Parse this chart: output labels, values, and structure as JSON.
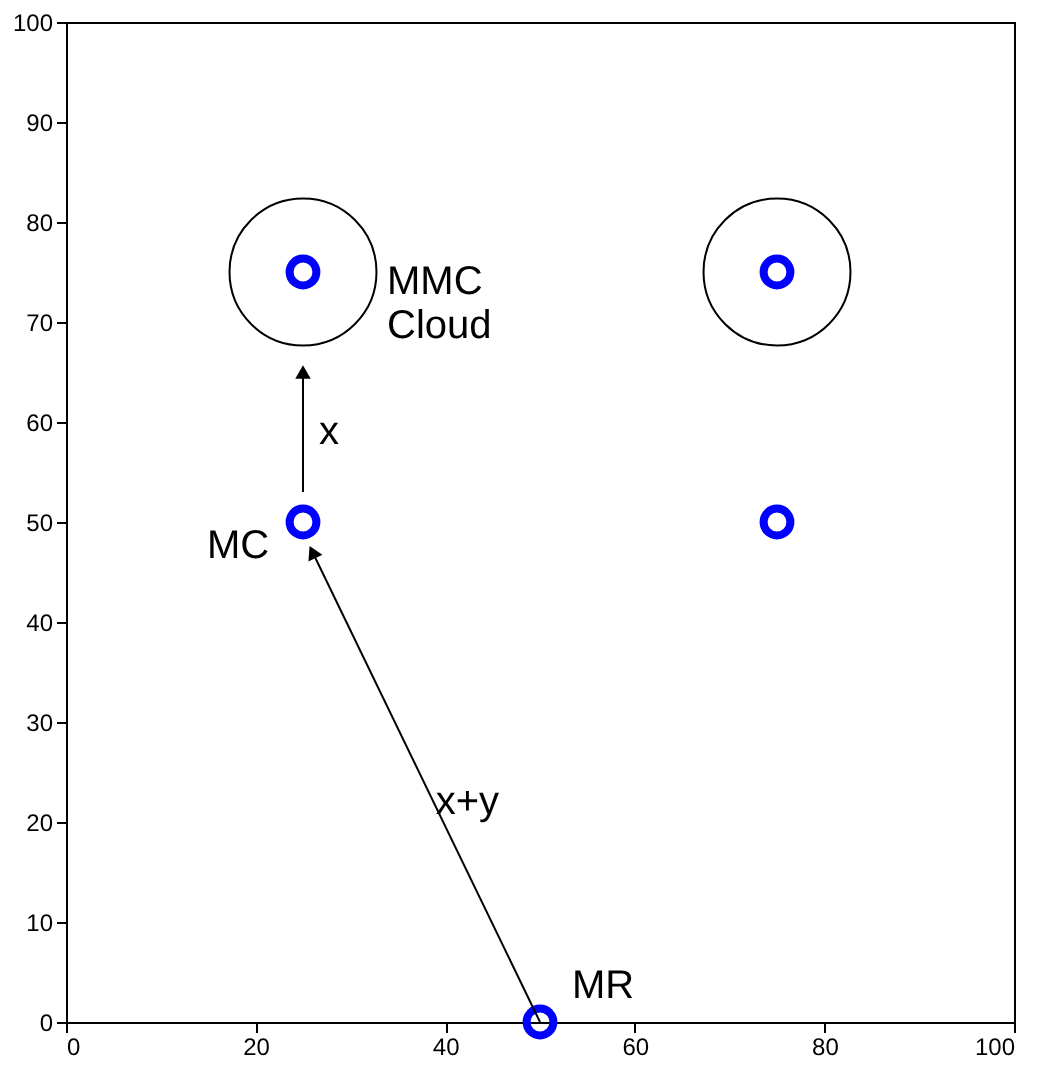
{
  "chart_data": {
    "type": "scatter",
    "xlim": [
      0,
      100
    ],
    "ylim": [
      0,
      100
    ],
    "xticks": [
      0,
      20,
      40,
      60,
      80,
      100
    ],
    "yticks": [
      0,
      10,
      20,
      30,
      40,
      50,
      60,
      70,
      80,
      90,
      100
    ],
    "grid": false,
    "marker": "circle",
    "series": [
      {
        "type": "bubble",
        "color": "#000000",
        "x": [
          25,
          75
        ],
        "values": [
          75,
          75
        ],
        "sizes": [
          1,
          1
        ]
      },
      {
        "color": "#0000ff",
        "x": [
          25,
          75,
          25,
          75,
          50
        ],
        "values": [
          75,
          75,
          50,
          50,
          0
        ]
      },
      {
        "type": "line",
        "color": "#000000",
        "x": [
          50,
          26
        ],
        "values": [
          0,
          47
        ],
        "marker": "triangle"
      },
      {
        "type": "line",
        "color": "#000000",
        "x": [
          25,
          25
        ],
        "values": [
          53,
          65
        ],
        "marker": "triangle"
      }
    ],
    "annotations": [
      {
        "text": "MMC\nCloud",
        "x": 25,
        "y": 75
      },
      {
        "text": "MC",
        "x": 25,
        "y": 50
      },
      {
        "text": "x",
        "x": 25,
        "y": 59
      },
      {
        "text": "x+y",
        "x": 39,
        "y": 22
      },
      {
        "text": "MR",
        "x": 50,
        "y": 0
      }
    ]
  }
}
